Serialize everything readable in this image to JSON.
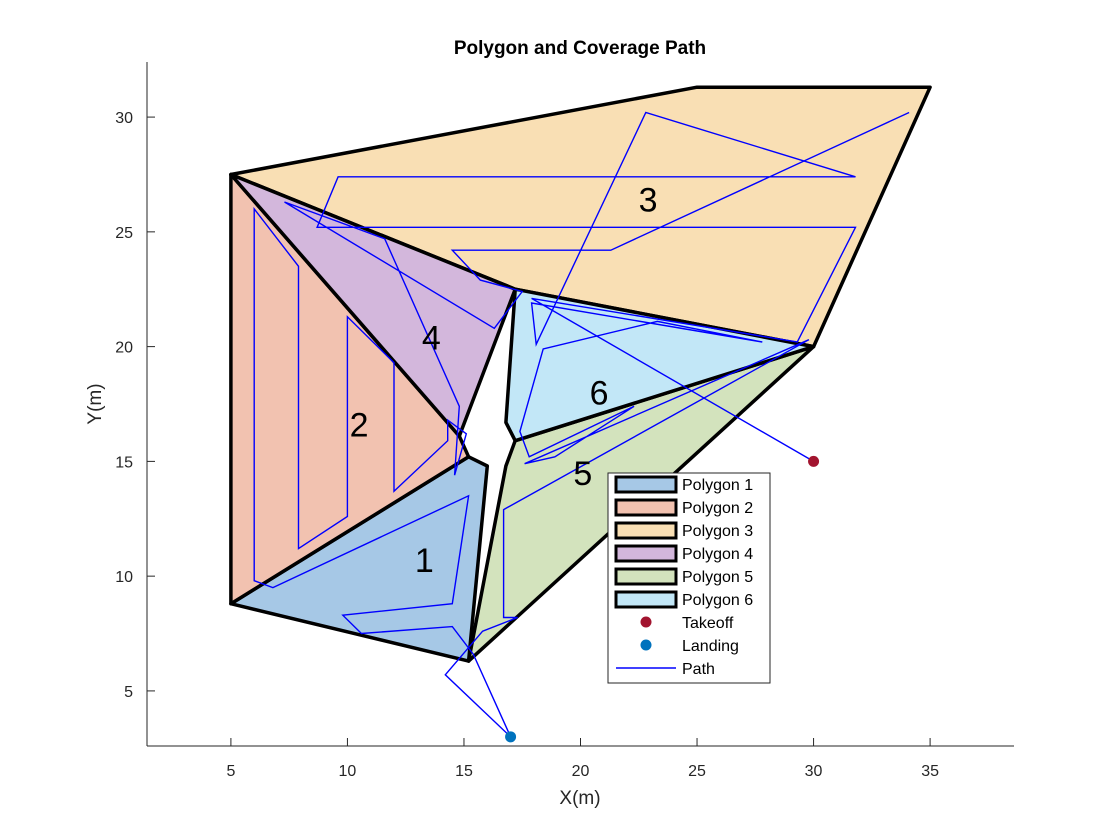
{
  "chart_data": {
    "type": "scatter",
    "title": "Polygon and Coverage Path",
    "xlabel": "X(m)",
    "ylabel": "Y(m)",
    "xlim": [
      1.4,
      38.6
    ],
    "ylim": [
      2.6,
      32.4
    ],
    "xticks": [
      5,
      10,
      15,
      20,
      25,
      30,
      35
    ],
    "yticks": [
      5,
      10,
      15,
      20,
      25,
      30
    ],
    "grid": false,
    "legend_position": "inside-lower-center",
    "polygons": [
      {
        "name": "Polygon 1",
        "label": "1",
        "fill": "#a6c8e6",
        "vertices": [
          [
            5,
            8.8
          ],
          [
            15.2,
            15.2
          ],
          [
            16,
            14.8
          ],
          [
            15.2,
            6.3
          ]
        ],
        "label_pos": [
          13.3,
          10.7
        ]
      },
      {
        "name": "Polygon 2",
        "label": "2",
        "fill": "#f2c2b0",
        "vertices": [
          [
            5,
            27.5
          ],
          [
            5,
            8.8
          ],
          [
            15.2,
            15.2
          ],
          [
            14.8,
            16.1
          ]
        ],
        "label_pos": [
          10.5,
          16.6
        ]
      },
      {
        "name": "Polygon 3",
        "label": "3",
        "fill": "#f9dfb4",
        "vertices": [
          [
            5,
            27.5
          ],
          [
            25,
            31.3
          ],
          [
            35,
            31.3
          ],
          [
            30,
            20
          ],
          [
            17.2,
            22.5
          ]
        ],
        "label_pos": [
          22.9,
          26.4
        ]
      },
      {
        "name": "Polygon 4",
        "label": "4",
        "fill": "#d3b7dc",
        "vertices": [
          [
            5,
            27.5
          ],
          [
            17.2,
            22.5
          ],
          [
            14.8,
            16.1
          ]
        ],
        "label_pos": [
          13.6,
          20.4
        ]
      },
      {
        "name": "Polygon 5",
        "label": "5",
        "fill": "#d3e3bd",
        "vertices": [
          [
            15.2,
            6.3
          ],
          [
            30,
            20
          ],
          [
            17.2,
            15.9
          ],
          [
            16.8,
            14.8
          ]
        ],
        "label_pos": [
          20.1,
          14.5
        ]
      },
      {
        "name": "Polygon 6",
        "label": "6",
        "fill": "#c2e7f7",
        "vertices": [
          [
            17.2,
            22.5
          ],
          [
            30,
            20
          ],
          [
            17.2,
            15.9
          ],
          [
            16.8,
            16.7
          ]
        ],
        "label_pos": [
          20.8,
          18.0
        ]
      }
    ],
    "takeoff": {
      "name": "Takeoff",
      "x": 30,
      "y": 15,
      "color": "#a2142f"
    },
    "landing": {
      "name": "Landing",
      "x": 17,
      "y": 3,
      "color": "#0072bd"
    },
    "path": {
      "name": "Path",
      "color": "#0000ff",
      "points": [
        [
          30,
          15
        ],
        [
          17.9,
          22.1
        ],
        [
          29.3,
          20.2
        ],
        [
          31.8,
          25.2
        ],
        [
          8.7,
          25.2
        ],
        [
          9.6,
          27.4
        ],
        [
          31.8,
          27.4
        ],
        [
          22.8,
          30.2
        ],
        [
          18.1,
          20.1
        ],
        [
          17.9,
          21.9
        ],
        [
          27.8,
          20.2
        ],
        [
          23.3,
          21.1
        ],
        [
          18.4,
          19.9
        ],
        [
          17.4,
          16.3
        ],
        [
          17.8,
          15.2
        ],
        [
          22.3,
          17.4
        ],
        [
          18.9,
          15.2
        ],
        [
          17.6,
          14.9
        ],
        [
          29.8,
          20.3
        ],
        [
          16.7,
          12.9
        ],
        [
          16.7,
          8.2
        ],
        [
          17.3,
          8.2
        ],
        [
          15.8,
          7.6
        ],
        [
          14.2,
          5.7
        ],
        [
          17,
          3
        ],
        [
          15.4,
          6.6
        ],
        [
          14.5,
          7.8
        ],
        [
          10.6,
          7.5
        ],
        [
          9.8,
          8.3
        ],
        [
          14.5,
          8.8
        ],
        [
          15.2,
          13.5
        ],
        [
          6.8,
          9.5
        ],
        [
          6,
          9.8
        ],
        [
          6,
          26
        ],
        [
          7.9,
          23.5
        ],
        [
          7.9,
          11.2
        ],
        [
          10,
          12.6
        ],
        [
          10,
          21.3
        ],
        [
          12,
          19.3
        ],
        [
          12,
          13.7
        ],
        [
          14.3,
          15.9
        ],
        [
          14.3,
          16.8
        ],
        [
          15.1,
          16.2
        ],
        [
          14.6,
          14.4
        ],
        [
          14.8,
          17.4
        ],
        [
          11.6,
          24.7
        ],
        [
          7.3,
          26.3
        ],
        [
          16.3,
          20.8
        ],
        [
          17.5,
          22.4
        ],
        [
          15.7,
          22.9
        ],
        [
          14.5,
          24.2
        ],
        [
          21.3,
          24.2
        ],
        [
          34.1,
          30.2
        ]
      ]
    }
  },
  "legend": {
    "items": [
      {
        "label": "Polygon 1",
        "kind": "patch",
        "color": "#a6c8e6"
      },
      {
        "label": "Polygon 2",
        "kind": "patch",
        "color": "#f2c2b0"
      },
      {
        "label": "Polygon 3",
        "kind": "patch",
        "color": "#f9dfb4"
      },
      {
        "label": "Polygon 4",
        "kind": "patch",
        "color": "#d3b7dc"
      },
      {
        "label": "Polygon 5",
        "kind": "patch",
        "color": "#d3e3bd"
      },
      {
        "label": "Polygon 6",
        "kind": "patch",
        "color": "#c2e7f7"
      },
      {
        "label": "Takeoff",
        "kind": "marker",
        "color": "#a2142f"
      },
      {
        "label": "Landing",
        "kind": "marker",
        "color": "#0072bd"
      },
      {
        "label": "Path",
        "kind": "line",
        "color": "#0000ff"
      }
    ]
  }
}
